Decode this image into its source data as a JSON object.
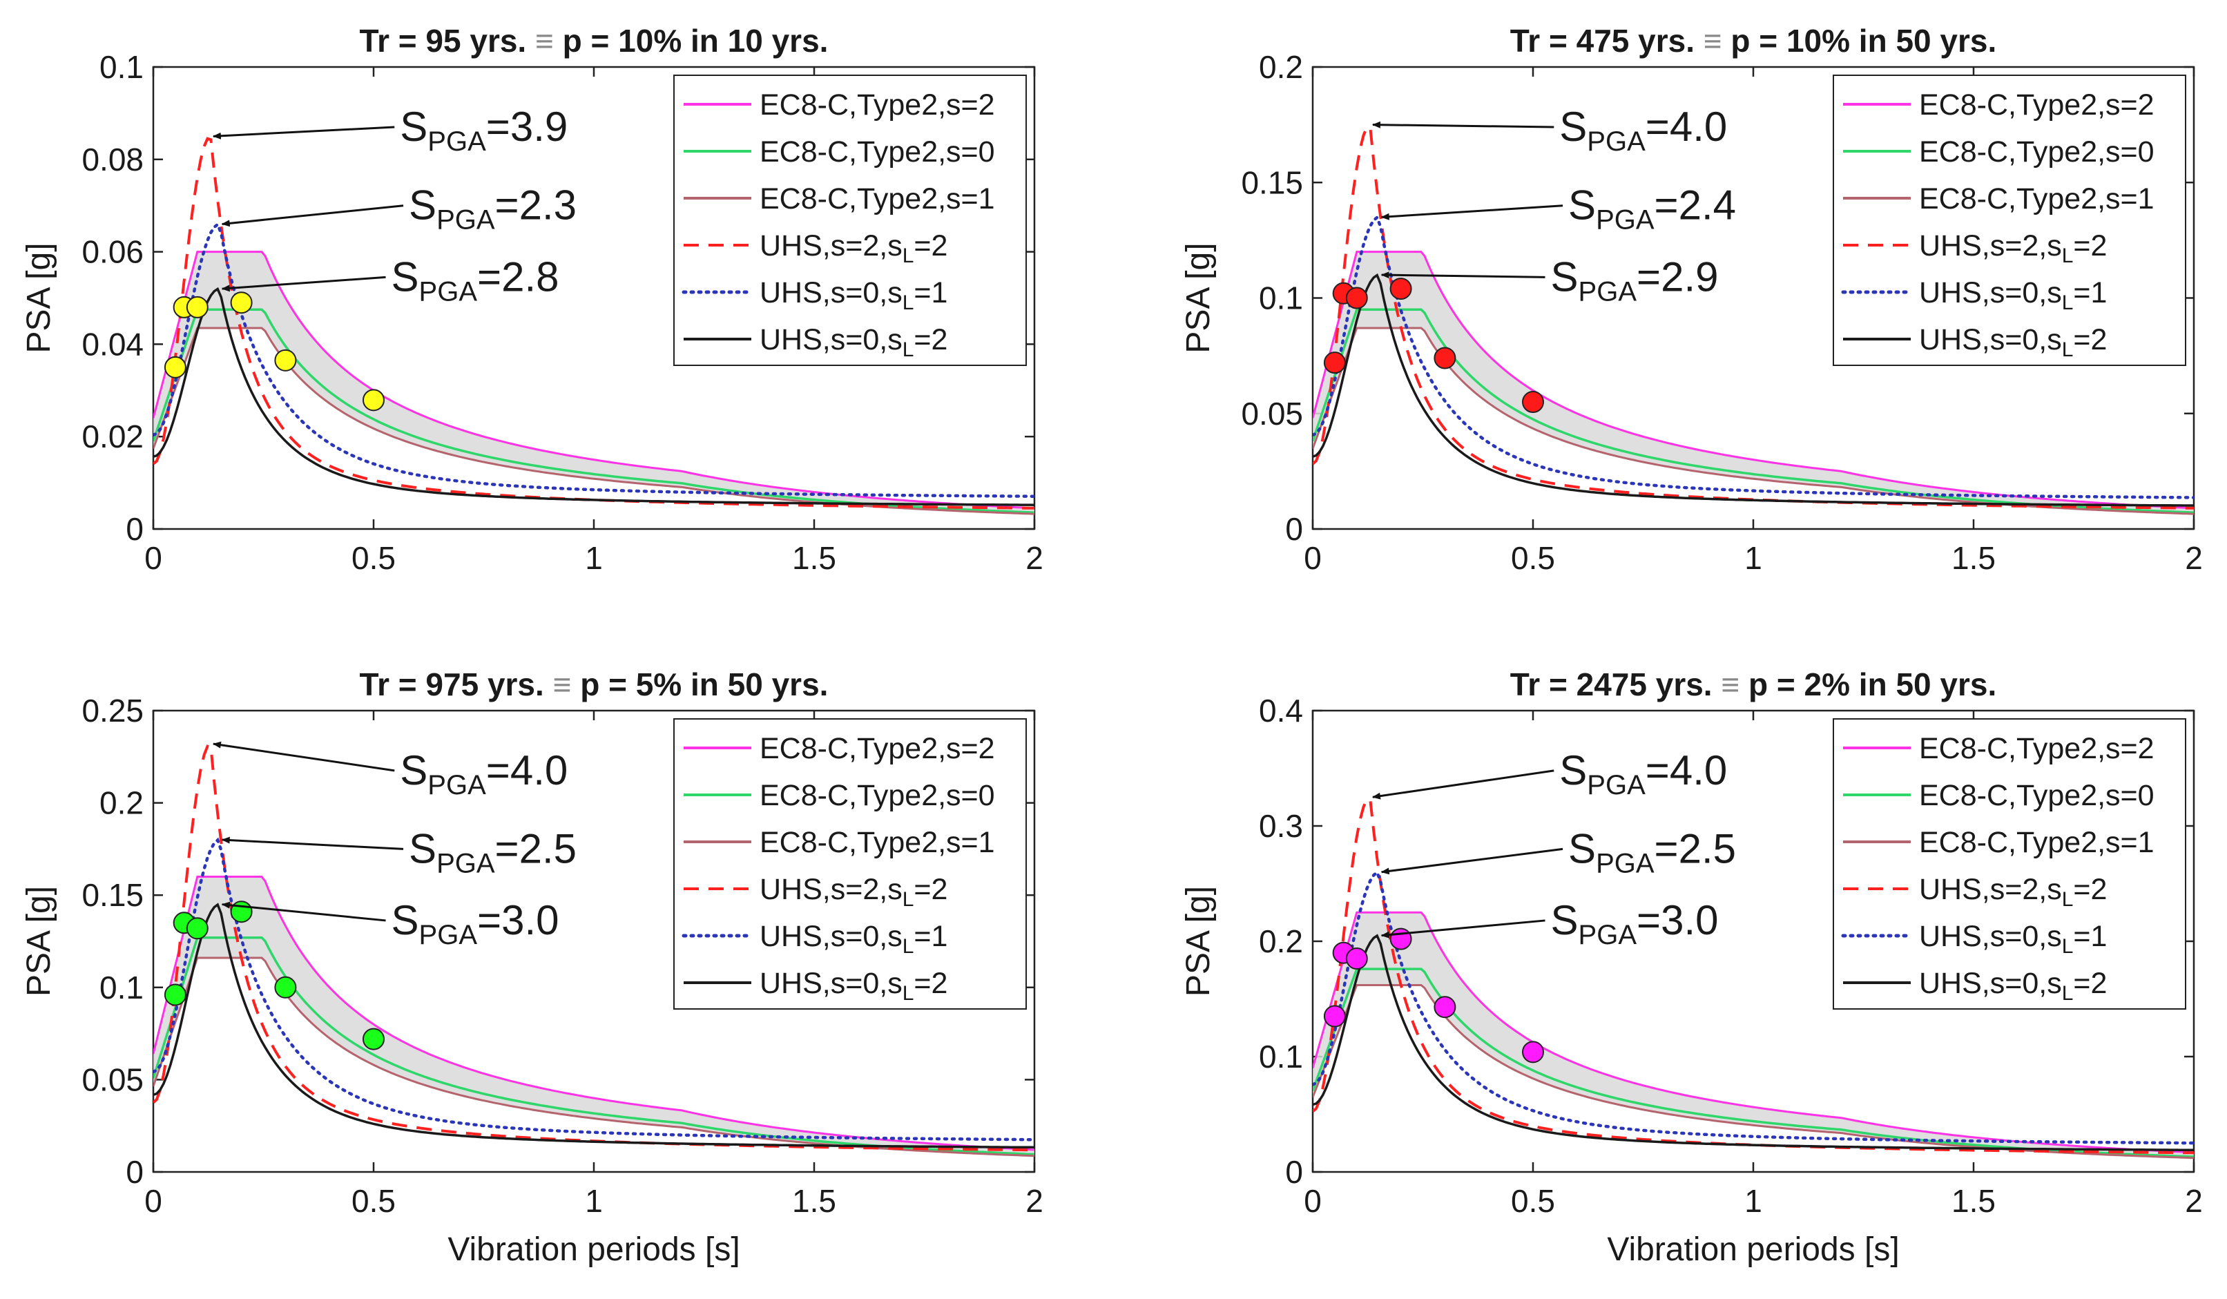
{
  "figure": {
    "xlabel": "Vibration periods [s]",
    "ylabel": "PSA [g]",
    "title_symbol": "≡"
  },
  "legend": [
    {
      "text": "EC8-C,Type2,s=2",
      "color": "#ff33e6",
      "style": "solid"
    },
    {
      "text": "EC8-C,Type2,s=0",
      "color": "#2fd66a",
      "style": "solid"
    },
    {
      "text": "EC8-C,Type2,s=1",
      "color": "#b5646e",
      "style": "solid"
    },
    {
      "text": "UHS,s=2,s",
      "sub": "L",
      "tail": "=2",
      "color": "#ff2020",
      "style": "dashed"
    },
    {
      "text": "UHS,s=0,s",
      "sub": "L",
      "tail": "=1",
      "color": "#2a35b8",
      "style": "dotted"
    },
    {
      "text": "UHS,s=0,s",
      "sub": "L",
      "tail": "=2",
      "color": "#1a1a1a",
      "style": "solid"
    }
  ],
  "chart_data": [
    {
      "type": "line",
      "title_left": "Tr = 95 yrs.",
      "title_right": "p = 10% in 10 yrs.",
      "xlim": [
        0,
        2
      ],
      "ylim": [
        0,
        0.1
      ],
      "xticks": [
        "0",
        "0.5",
        "1",
        "1.5",
        "2"
      ],
      "yticks": [
        "0",
        "0.02",
        "0.04",
        "0.06",
        "0.08",
        "0.1"
      ],
      "marker_color": "#ffff1a",
      "ec8": {
        "s2": 0.06,
        "s0": 0.0475,
        "s1": 0.0435,
        "TB": 0.1,
        "TC": 0.25,
        "TD": 1.2
      },
      "uhs": {
        "s2_peak": 0.085,
        "s0_peak": 0.066,
        "s0l2_peak": 0.052,
        "s2_tail": 0.0028,
        "s0l1_tail": 0.0058,
        "s0l2_tail": 0.0042
      },
      "markers": [
        [
          0.05,
          0.035
        ],
        [
          0.07,
          0.048
        ],
        [
          0.1,
          0.048
        ],
        [
          0.2,
          0.049
        ],
        [
          0.3,
          0.0365
        ],
        [
          0.5,
          0.0279
        ]
      ],
      "annotations": [
        {
          "label": "S",
          "sub": "PGA",
          "value": "=3.9",
          "target": [
            0.13,
            0.085
          ]
        },
        {
          "label": "S",
          "sub": "PGA",
          "value": "=2.3",
          "target": [
            0.15,
            0.066
          ]
        },
        {
          "label": "S",
          "sub": "PGA",
          "value": "=2.8",
          "target": [
            0.15,
            0.052
          ]
        }
      ]
    },
    {
      "type": "line",
      "title_left": "Tr = 475 yrs.",
      "title_right": "p = 10% in 50 yrs.",
      "xlim": [
        0,
        2
      ],
      "ylim": [
        0,
        0.2
      ],
      "xticks": [
        "0",
        "0.5",
        "1",
        "1.5",
        "2"
      ],
      "yticks": [
        "0",
        "0.05",
        "0.1",
        "0.15",
        "0.2"
      ],
      "marker_color": "#ff1a1a",
      "ec8": {
        "s2": 0.12,
        "s0": 0.095,
        "s1": 0.087,
        "TB": 0.1,
        "TC": 0.25,
        "TD": 1.2
      },
      "uhs": {
        "s2_peak": 0.175,
        "s0_peak": 0.135,
        "s0l2_peak": 0.11,
        "s2_tail": 0.0055,
        "s0l1_tail": 0.011,
        "s0l2_tail": 0.008
      },
      "markers": [
        [
          0.05,
          0.072
        ],
        [
          0.07,
          0.102
        ],
        [
          0.1,
          0.1
        ],
        [
          0.2,
          0.104
        ],
        [
          0.3,
          0.074
        ],
        [
          0.5,
          0.055
        ]
      ],
      "annotations": [
        {
          "label": "S",
          "sub": "PGA",
          "value": "=4.0",
          "target": [
            0.13,
            0.175
          ]
        },
        {
          "label": "S",
          "sub": "PGA",
          "value": "=2.4",
          "target": [
            0.15,
            0.135
          ]
        },
        {
          "label": "S",
          "sub": "PGA",
          "value": "=2.9",
          "target": [
            0.15,
            0.11
          ]
        }
      ]
    },
    {
      "type": "line",
      "title_left": "Tr = 975 yrs.",
      "title_right": "p = 5% in 50 yrs.",
      "xlim": [
        0,
        2
      ],
      "ylim": [
        0,
        0.25
      ],
      "xticks": [
        "0",
        "0.5",
        "1",
        "1.5",
        "2"
      ],
      "yticks": [
        "0",
        "0.05",
        "0.1",
        "0.15",
        "0.2",
        "0.25"
      ],
      "marker_color": "#1aff1a",
      "ec8": {
        "s2": 0.16,
        "s0": 0.127,
        "s1": 0.116,
        "TB": 0.1,
        "TC": 0.25,
        "TD": 1.2
      },
      "uhs": {
        "s2_peak": 0.232,
        "s0_peak": 0.18,
        "s0l2_peak": 0.145,
        "s2_tail": 0.0072,
        "s0l1_tail": 0.014,
        "s0l2_tail": 0.0105
      },
      "markers": [
        [
          0.05,
          0.096
        ],
        [
          0.07,
          0.135
        ],
        [
          0.1,
          0.132
        ],
        [
          0.2,
          0.141
        ],
        [
          0.3,
          0.1
        ],
        [
          0.5,
          0.072
        ]
      ],
      "annotations": [
        {
          "label": "S",
          "sub": "PGA",
          "value": "=4.0",
          "target": [
            0.13,
            0.232
          ]
        },
        {
          "label": "S",
          "sub": "PGA",
          "value": "=2.5",
          "target": [
            0.15,
            0.18
          ]
        },
        {
          "label": "S",
          "sub": "PGA",
          "value": "=3.0",
          "target": [
            0.15,
            0.145
          ]
        }
      ]
    },
    {
      "type": "line",
      "title_left": "Tr = 2475 yrs.",
      "title_right": "p = 2% in 50 yrs.",
      "xlim": [
        0,
        2
      ],
      "ylim": [
        0,
        0.4
      ],
      "xticks": [
        "0",
        "0.5",
        "1",
        "1.5",
        "2"
      ],
      "yticks": [
        "0",
        "0.1",
        "0.2",
        "0.3",
        "0.4"
      ],
      "marker_color": "#ff1aff",
      "ec8": {
        "s2": 0.225,
        "s0": 0.176,
        "s1": 0.162,
        "TB": 0.1,
        "TC": 0.25,
        "TD": 1.2
      },
      "uhs": {
        "s2_peak": 0.325,
        "s0_peak": 0.26,
        "s0l2_peak": 0.205,
        "s2_tail": 0.01,
        "s0l1_tail": 0.02,
        "s0l2_tail": 0.015
      },
      "markers": [
        [
          0.05,
          0.135
        ],
        [
          0.07,
          0.19
        ],
        [
          0.1,
          0.185
        ],
        [
          0.2,
          0.202
        ],
        [
          0.3,
          0.143
        ],
        [
          0.5,
          0.104
        ]
      ],
      "annotations": [
        {
          "label": "S",
          "sub": "PGA",
          "value": "=4.0",
          "target": [
            0.13,
            0.325
          ]
        },
        {
          "label": "S",
          "sub": "PGA",
          "value": "=2.5",
          "target": [
            0.15,
            0.26
          ]
        },
        {
          "label": "S",
          "sub": "PGA",
          "value": "=3.0",
          "target": [
            0.15,
            0.205
          ]
        }
      ]
    }
  ]
}
